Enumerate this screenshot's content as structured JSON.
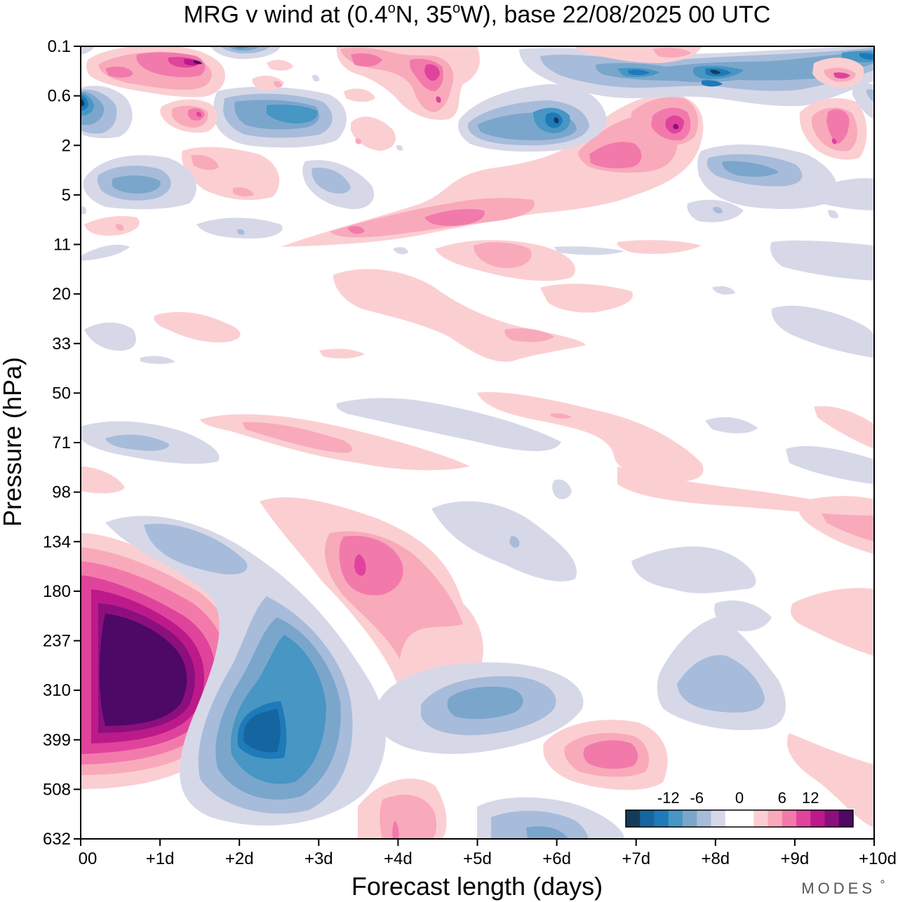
{
  "chart_data": {
    "type": "heatmap",
    "title_prefix": "MRG v wind at (0.4",
    "title_deg1": "o",
    "title_lat": "N, 35",
    "title_deg2": "o",
    "title_suffix": "W),  base 22/08/2025  00 UTC",
    "xlabel": "Forecast length (days)",
    "ylabel": "Pressure (hPa)",
    "x_ticks": [
      "00",
      "+1d",
      "+2d",
      "+3d",
      "+4d",
      "+5d",
      "+6d",
      "+7d",
      "+8d",
      "+9d",
      "+10d"
    ],
    "xlim": [
      0,
      10
    ],
    "y_ticks": [
      "0.1",
      "0.6",
      "2",
      "5",
      "11",
      "20",
      "33",
      "50",
      "71",
      "98",
      "134",
      "180",
      "237",
      "310",
      "399",
      "508",
      "632"
    ],
    "y_scale": "categorical levels, top = 0.1 hPa, bottom = 632 hPa",
    "colorbar": {
      "labels": [
        "-12",
        "-6",
        "0",
        "6",
        "12"
      ],
      "colors": [
        "#143c5a",
        "#1565a0",
        "#1e7ab8",
        "#4796c4",
        "#7ba6cc",
        "#a7bcda",
        "#d6d8e8",
        "#ffffff",
        "#ffffff",
        "#fbcfd2",
        "#f8aabb",
        "#f27aab",
        "#e0439c",
        "#bc1a8a",
        "#8c0f7e",
        "#4e0865"
      ],
      "placement": "bottom-right inside plot"
    },
    "features": [
      {
        "x": 1.0,
        "level": 13.2,
        "value": 16,
        "note": "strong positive maximum, lower troposphere"
      },
      {
        "x": 2.4,
        "level": 14.0,
        "value": -10,
        "note": "negative minimum"
      },
      {
        "x": 3.6,
        "level": 10.5,
        "value": 9
      },
      {
        "x": 5.0,
        "level": 13.6,
        "value": -6
      },
      {
        "x": 6.8,
        "level": 14.3,
        "value": 7
      },
      {
        "x": 7.3,
        "level": 1.6,
        "value": 10
      },
      {
        "x": 8.0,
        "level": 0.4,
        "value": -10
      },
      {
        "x": 1.4,
        "level": 0.3,
        "value": 12
      },
      {
        "x": 0.4,
        "level": 2.8,
        "value": -6
      },
      {
        "x": 4.5,
        "level": 0.6,
        "value": 9
      },
      {
        "x": 9.5,
        "level": 1.9,
        "value": 8
      }
    ],
    "watermark": "MODES"
  }
}
